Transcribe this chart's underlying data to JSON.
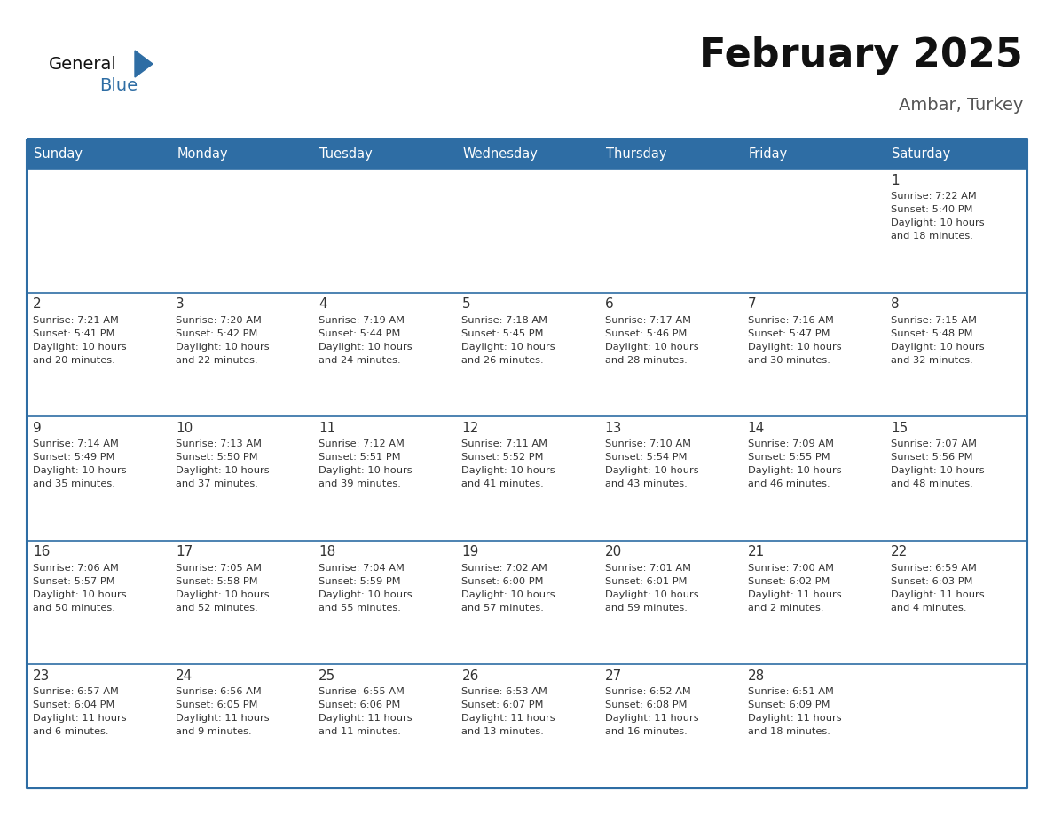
{
  "title": "February 2025",
  "subtitle": "Ambar, Turkey",
  "header_bg": "#2E6DA4",
  "header_text_color": "#FFFFFF",
  "cell_bg": "#FFFFFF",
  "border_color": "#2E6DA4",
  "text_color": "#333333",
  "days_of_week": [
    "Sunday",
    "Monday",
    "Tuesday",
    "Wednesday",
    "Thursday",
    "Friday",
    "Saturday"
  ],
  "weeks": [
    [
      {
        "day": "",
        "info": ""
      },
      {
        "day": "",
        "info": ""
      },
      {
        "day": "",
        "info": ""
      },
      {
        "day": "",
        "info": ""
      },
      {
        "day": "",
        "info": ""
      },
      {
        "day": "",
        "info": ""
      },
      {
        "day": "1",
        "info": "Sunrise: 7:22 AM\nSunset: 5:40 PM\nDaylight: 10 hours\nand 18 minutes."
      }
    ],
    [
      {
        "day": "2",
        "info": "Sunrise: 7:21 AM\nSunset: 5:41 PM\nDaylight: 10 hours\nand 20 minutes."
      },
      {
        "day": "3",
        "info": "Sunrise: 7:20 AM\nSunset: 5:42 PM\nDaylight: 10 hours\nand 22 minutes."
      },
      {
        "day": "4",
        "info": "Sunrise: 7:19 AM\nSunset: 5:44 PM\nDaylight: 10 hours\nand 24 minutes."
      },
      {
        "day": "5",
        "info": "Sunrise: 7:18 AM\nSunset: 5:45 PM\nDaylight: 10 hours\nand 26 minutes."
      },
      {
        "day": "6",
        "info": "Sunrise: 7:17 AM\nSunset: 5:46 PM\nDaylight: 10 hours\nand 28 minutes."
      },
      {
        "day": "7",
        "info": "Sunrise: 7:16 AM\nSunset: 5:47 PM\nDaylight: 10 hours\nand 30 minutes."
      },
      {
        "day": "8",
        "info": "Sunrise: 7:15 AM\nSunset: 5:48 PM\nDaylight: 10 hours\nand 32 minutes."
      }
    ],
    [
      {
        "day": "9",
        "info": "Sunrise: 7:14 AM\nSunset: 5:49 PM\nDaylight: 10 hours\nand 35 minutes."
      },
      {
        "day": "10",
        "info": "Sunrise: 7:13 AM\nSunset: 5:50 PM\nDaylight: 10 hours\nand 37 minutes."
      },
      {
        "day": "11",
        "info": "Sunrise: 7:12 AM\nSunset: 5:51 PM\nDaylight: 10 hours\nand 39 minutes."
      },
      {
        "day": "12",
        "info": "Sunrise: 7:11 AM\nSunset: 5:52 PM\nDaylight: 10 hours\nand 41 minutes."
      },
      {
        "day": "13",
        "info": "Sunrise: 7:10 AM\nSunset: 5:54 PM\nDaylight: 10 hours\nand 43 minutes."
      },
      {
        "day": "14",
        "info": "Sunrise: 7:09 AM\nSunset: 5:55 PM\nDaylight: 10 hours\nand 46 minutes."
      },
      {
        "day": "15",
        "info": "Sunrise: 7:07 AM\nSunset: 5:56 PM\nDaylight: 10 hours\nand 48 minutes."
      }
    ],
    [
      {
        "day": "16",
        "info": "Sunrise: 7:06 AM\nSunset: 5:57 PM\nDaylight: 10 hours\nand 50 minutes."
      },
      {
        "day": "17",
        "info": "Sunrise: 7:05 AM\nSunset: 5:58 PM\nDaylight: 10 hours\nand 52 minutes."
      },
      {
        "day": "18",
        "info": "Sunrise: 7:04 AM\nSunset: 5:59 PM\nDaylight: 10 hours\nand 55 minutes."
      },
      {
        "day": "19",
        "info": "Sunrise: 7:02 AM\nSunset: 6:00 PM\nDaylight: 10 hours\nand 57 minutes."
      },
      {
        "day": "20",
        "info": "Sunrise: 7:01 AM\nSunset: 6:01 PM\nDaylight: 10 hours\nand 59 minutes."
      },
      {
        "day": "21",
        "info": "Sunrise: 7:00 AM\nSunset: 6:02 PM\nDaylight: 11 hours\nand 2 minutes."
      },
      {
        "day": "22",
        "info": "Sunrise: 6:59 AM\nSunset: 6:03 PM\nDaylight: 11 hours\nand 4 minutes."
      }
    ],
    [
      {
        "day": "23",
        "info": "Sunrise: 6:57 AM\nSunset: 6:04 PM\nDaylight: 11 hours\nand 6 minutes."
      },
      {
        "day": "24",
        "info": "Sunrise: 6:56 AM\nSunset: 6:05 PM\nDaylight: 11 hours\nand 9 minutes."
      },
      {
        "day": "25",
        "info": "Sunrise: 6:55 AM\nSunset: 6:06 PM\nDaylight: 11 hours\nand 11 minutes."
      },
      {
        "day": "26",
        "info": "Sunrise: 6:53 AM\nSunset: 6:07 PM\nDaylight: 11 hours\nand 13 minutes."
      },
      {
        "day": "27",
        "info": "Sunrise: 6:52 AM\nSunset: 6:08 PM\nDaylight: 11 hours\nand 16 minutes."
      },
      {
        "day": "28",
        "info": "Sunrise: 6:51 AM\nSunset: 6:09 PM\nDaylight: 11 hours\nand 18 minutes."
      },
      {
        "day": "",
        "info": ""
      }
    ]
  ]
}
